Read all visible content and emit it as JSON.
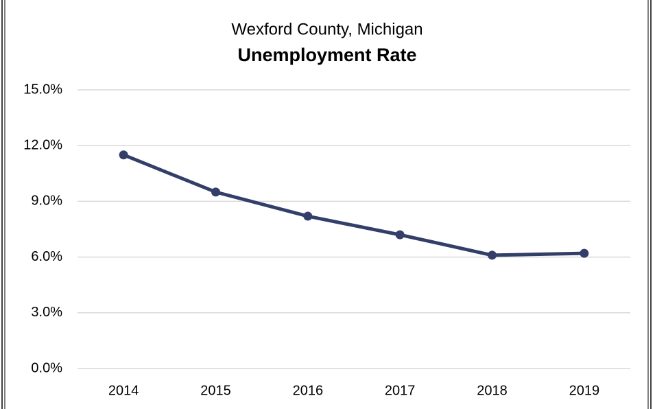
{
  "chart_data": {
    "type": "line",
    "title": "Wexford County, Michigan",
    "subtitle": "Unemployment Rate",
    "categories": [
      "2014",
      "2015",
      "2016",
      "2017",
      "2018",
      "2019"
    ],
    "series": [
      {
        "name": "Unemployment Rate",
        "color": "#333f69",
        "values": [
          11.5,
          9.5,
          8.2,
          7.2,
          6.1,
          6.2
        ]
      }
    ],
    "ylim": [
      0,
      15
    ],
    "yticks": [
      {
        "value": 0,
        "label": "0.0%"
      },
      {
        "value": 3,
        "label": "3.0%"
      },
      {
        "value": 6,
        "label": "6.0%"
      },
      {
        "value": 9,
        "label": "9.0%"
      },
      {
        "value": 12,
        "label": "12.0%"
      },
      {
        "value": 15,
        "label": "15.0%"
      }
    ],
    "grid": true
  }
}
